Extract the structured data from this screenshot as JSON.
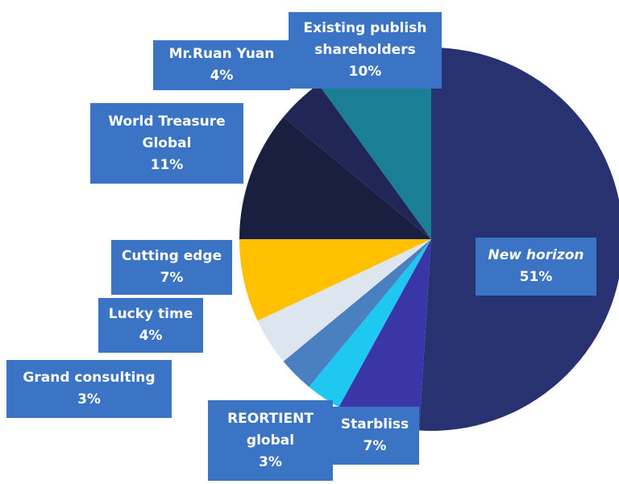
{
  "chart_data": {
    "type": "pie",
    "categories": [
      "New horizon",
      "Starbliss",
      "REORTIENT global",
      "Grand consulting",
      "Lucky time",
      "Cutting edge",
      "World Treasure Global",
      "Mr.Ruan Yuan",
      "Existing publish shareholders"
    ],
    "values": [
      51,
      7,
      3,
      3,
      4,
      7,
      11,
      4,
      10
    ],
    "value_labels": [
      "51%",
      "7%",
      "3%",
      "3%",
      "4%",
      "7%",
      "11%",
      "4%",
      "10%"
    ],
    "colors": [
      "#283270",
      "#3a36a8",
      "#1ec8f0",
      "#4a7fc0",
      "#dde6ef",
      "#ffc000",
      "#1a1f40",
      "#202656",
      "#1a7f95"
    ]
  }
}
